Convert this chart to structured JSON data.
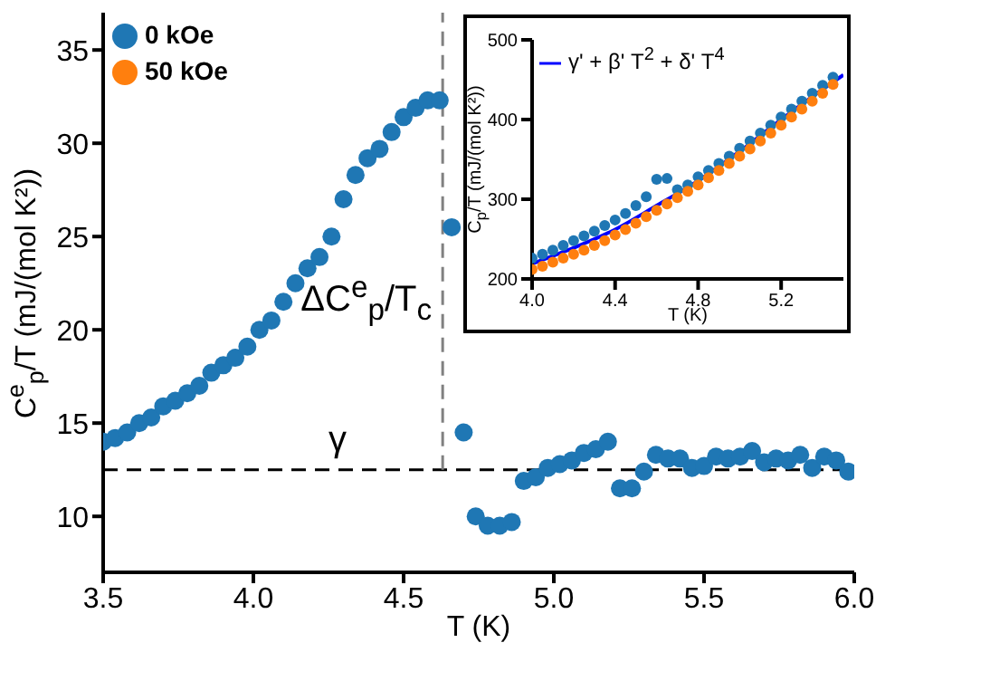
{
  "chart_data": [
    {
      "type": "scatter",
      "xlabel": "T (K)",
      "ylabel": "C$^{e}$$_{p}$/T (mJ/(mol K²))",
      "xlim": [
        3.5,
        6.0
      ],
      "ylim": [
        7,
        37
      ],
      "xticks": [
        3.5,
        {
          "value": 4,
          "label": "4.0"
        },
        4.5,
        {
          "value": 5,
          "label": "5.0"
        },
        5.5,
        {
          "value": 6,
          "label": "6.0"
        }
      ],
      "yticks": [
        10,
        15,
        20,
        25,
        30,
        35
      ],
      "grid": false,
      "legend": "top left",
      "marker": "circle",
      "ref_lines": [
        {
          "axis": "y",
          "value": 12.5,
          "label": "γ",
          "line_style": "dashed",
          "color": "#000000"
        },
        {
          "axis": "x",
          "value": 4.63,
          "label": "ΔC$^{e}$$_{p}$/T$_{c}$",
          "line_style": "dashed",
          "color": "#808080"
        }
      ],
      "series": [
        {
          "name": "0 kOe",
          "color": "#1f77b4",
          "x": [
            3.5,
            3.54,
            3.58,
            3.62,
            3.66,
            3.7,
            3.74,
            3.78,
            3.82,
            3.86,
            3.9,
            3.94,
            3.98,
            4.02,
            4.06,
            4.1,
            4.14,
            4.18,
            4.22,
            4.26,
            4.3,
            4.34,
            4.38,
            4.42,
            4.46,
            4.5,
            4.54,
            4.58,
            4.62,
            4.66,
            4.7,
            4.74,
            4.78,
            4.82,
            4.86,
            4.9,
            4.94,
            4.98,
            5.02,
            5.06,
            5.1,
            5.14,
            5.18,
            5.22,
            5.26,
            5.3,
            5.34,
            5.38,
            5.42,
            5.46,
            5.5,
            5.54,
            5.58,
            5.62,
            5.66,
            5.7,
            5.74,
            5.78,
            5.82,
            5.86,
            5.9,
            5.94,
            5.98
          ],
          "values": [
            14.0,
            14.2,
            14.5,
            15.0,
            15.3,
            15.9,
            16.2,
            16.6,
            17.0,
            17.7,
            18.1,
            18.5,
            19.1,
            20.0,
            20.5,
            21.5,
            22.5,
            23.3,
            23.9,
            25.0,
            27.0,
            28.3,
            29.2,
            29.7,
            30.6,
            31.4,
            31.9,
            32.3,
            32.3,
            25.5,
            14.5,
            10.0,
            9.5,
            9.5,
            9.7,
            11.9,
            12.1,
            12.6,
            12.8,
            13.0,
            13.4,
            13.6,
            14.0,
            11.5,
            11.5,
            12.4,
            13.3,
            13.1,
            13.1,
            12.6,
            12.7,
            13.2,
            13.1,
            13.2,
            13.5,
            12.9,
            13.1,
            13.0,
            13.3,
            12.6,
            13.2,
            13.0,
            12.4
          ]
        },
        {
          "name": "50 kOe",
          "color": "#ff7f0e"
        }
      ]
    },
    {
      "type": "scatter",
      "xlabel": "T (K)",
      "ylabel": "C$_{p}$/T (mJ/(mol K²))",
      "xlim": [
        4.0,
        5.5
      ],
      "ylim": [
        200,
        500
      ],
      "xticks": [
        {
          "value": 4,
          "label": "4.0"
        },
        4.4,
        4.8,
        5.2
      ],
      "yticks": [
        200,
        300,
        400,
        500
      ],
      "grid": false,
      "legend": "top left",
      "marker": "circle",
      "series": [
        {
          "color": "#1f77b4",
          "x": [
            4.0,
            4.05,
            4.1,
            4.15,
            4.2,
            4.25,
            4.3,
            4.35,
            4.4,
            4.45,
            4.5,
            4.55,
            4.6,
            4.65,
            4.7,
            4.75,
            4.8,
            4.85,
            4.9,
            4.95,
            5.0,
            5.05,
            5.1,
            5.15,
            5.2,
            5.25,
            5.3,
            5.35,
            5.4,
            5.45
          ],
          "values": [
            226,
            231,
            236,
            242,
            248,
            254,
            260,
            267,
            274,
            282,
            292,
            303,
            325,
            326,
            312,
            318,
            328,
            336,
            345,
            354,
            364,
            373,
            383,
            393,
            403,
            413,
            423,
            433,
            443,
            453
          ]
        },
        {
          "color": "#ff7f0e",
          "x": [
            4.0,
            4.05,
            4.1,
            4.15,
            4.2,
            4.25,
            4.3,
            4.35,
            4.4,
            4.45,
            4.5,
            4.55,
            4.6,
            4.65,
            4.7,
            4.75,
            4.8,
            4.85,
            4.9,
            4.95,
            5.0,
            5.05,
            5.1,
            5.15,
            5.2,
            5.25,
            5.3,
            5.35,
            5.4,
            5.45
          ],
          "values": [
            212,
            216,
            221,
            226,
            231,
            236,
            242,
            248,
            255,
            262,
            270,
            278,
            286,
            294,
            302,
            310,
            318,
            327,
            336,
            345,
            354,
            363,
            373,
            383,
            393,
            403,
            413,
            423,
            433,
            444
          ]
        },
        {
          "name": "γ' + β' T$^{2}$ + δ' T$^{4}$",
          "type": "line",
          "marker": "none",
          "color": "#0000ff",
          "x": [
            4.0,
            4.2,
            4.4,
            4.6,
            4.8,
            5.0,
            5.2,
            5.4,
            5.5
          ],
          "values": [
            219,
            239,
            262,
            292,
            323,
            360,
            400,
            438,
            456
          ]
        }
      ]
    }
  ]
}
